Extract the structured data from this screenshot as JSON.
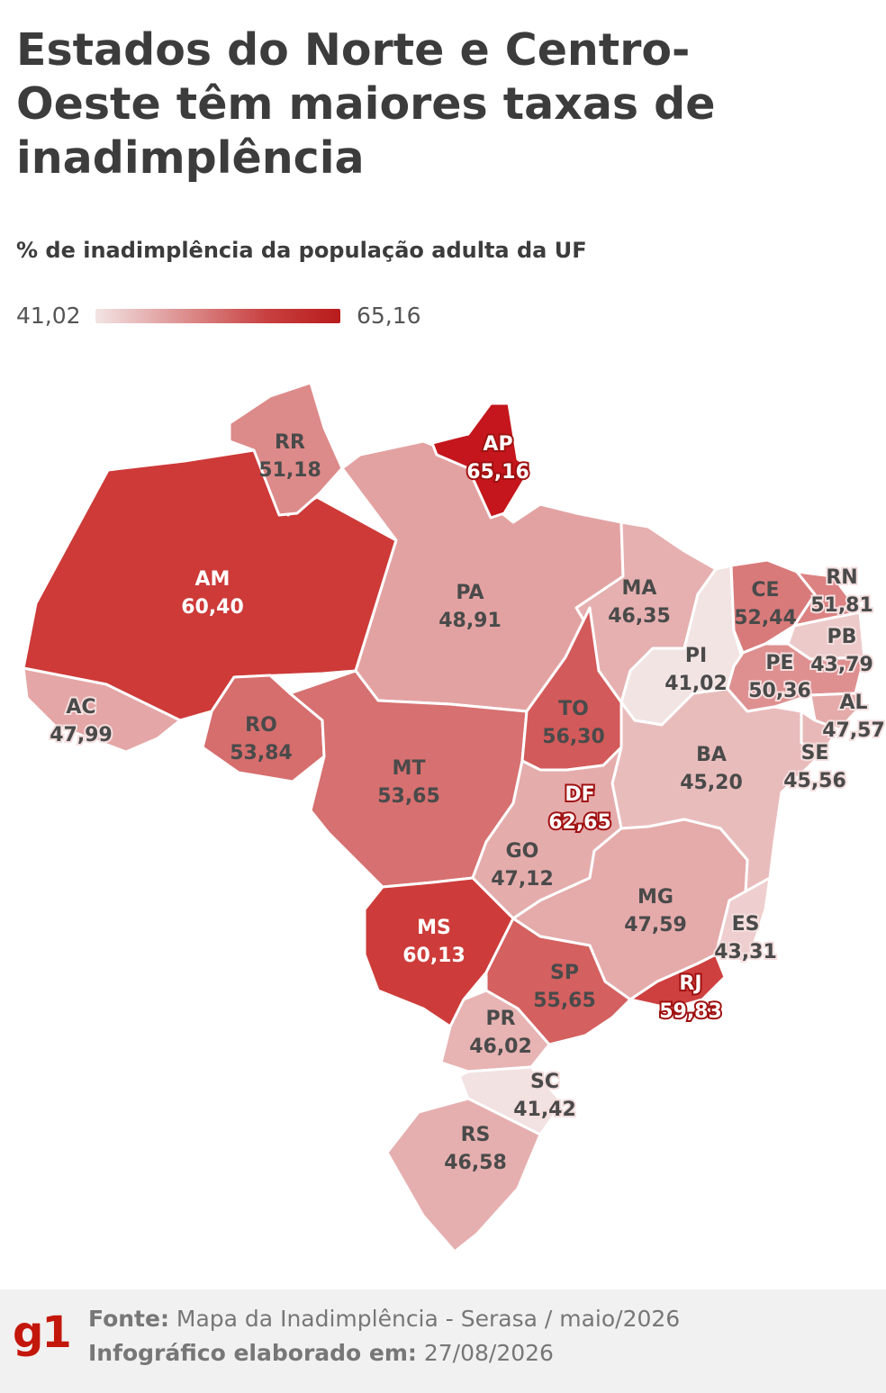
{
  "title": "Estados do Norte e Centro-Oeste têm maiores taxas de inadimplência",
  "subtitle": "% de inadimplência da população adulta da UF",
  "legend": {
    "min": "41,02",
    "max": "65,16",
    "min_color": "#f3e4e4",
    "max_color": "#b81b1b"
  },
  "states": {
    "RR": {
      "label": "RR",
      "value": "51,18",
      "color": "#dd8a8a"
    },
    "AP": {
      "label": "AP",
      "value": "65,16",
      "color": "#c4161c"
    },
    "AM": {
      "label": "AM",
      "value": "60,40",
      "color": "#cd3a38"
    },
    "PA": {
      "label": "PA",
      "value": "48,91",
      "color": "#e3a2a2"
    },
    "MA": {
      "label": "MA",
      "value": "46,35",
      "color": "#e6b0b0"
    },
    "CE": {
      "label": "CE",
      "value": "52,44",
      "color": "#d97a7a"
    },
    "RN": {
      "label": "RN",
      "value": "51,81",
      "color": "#dc8282"
    },
    "PB": {
      "label": "PB",
      "value": "43,79",
      "color": "#edcaca"
    },
    "PI": {
      "label": "PI",
      "value": "41,02",
      "color": "#f3e4e4"
    },
    "PE": {
      "label": "PE",
      "value": "50,36",
      "color": "#de9090"
    },
    "AL": {
      "label": "AL",
      "value": "47,57",
      "color": "#e5aaaa"
    },
    "SE": {
      "label": "SE",
      "value": "45,56",
      "color": "#e8b8b8"
    },
    "AC": {
      "label": "AC",
      "value": "47,99",
      "color": "#e4a6a6"
    },
    "TO": {
      "label": "TO",
      "value": "56,30",
      "color": "#d35a5a"
    },
    "RO": {
      "label": "RO",
      "value": "53,84",
      "color": "#d66e6e"
    },
    "MT": {
      "label": "MT",
      "value": "53,65",
      "color": "#d77070"
    },
    "BA": {
      "label": "BA",
      "value": "45,20",
      "color": "#e9bcbc"
    },
    "DF": {
      "label": "DF",
      "value": "62,65",
      "color": "#c82626"
    },
    "GO": {
      "label": "GO",
      "value": "47,12",
      "color": "#e5acac"
    },
    "MG": {
      "label": "MG",
      "value": "47,59",
      "color": "#e5aaaa"
    },
    "ES": {
      "label": "ES",
      "value": "43,31",
      "color": "#eecece"
    },
    "MS": {
      "label": "MS",
      "value": "60,13",
      "color": "#cd3c3a"
    },
    "SP": {
      "label": "SP",
      "value": "55,65",
      "color": "#d46060"
    },
    "RJ": {
      "label": "RJ",
      "value": "59,83",
      "color": "#ce4040"
    },
    "PR": {
      "label": "PR",
      "value": "46,02",
      "color": "#e7b3b3"
    },
    "SC": {
      "label": "SC",
      "value": "41,42",
      "color": "#f2e2e2"
    },
    "RS": {
      "label": "RS",
      "value": "46,58",
      "color": "#e6afaf"
    }
  },
  "footer": {
    "source_label": "Fonte:",
    "source_text": "Mapa da Inadimplência - Serasa / maio/2026",
    "date_label": "Infográfico elaborado em:",
    "date_text": "27/08/2026",
    "logo": "g1"
  }
}
